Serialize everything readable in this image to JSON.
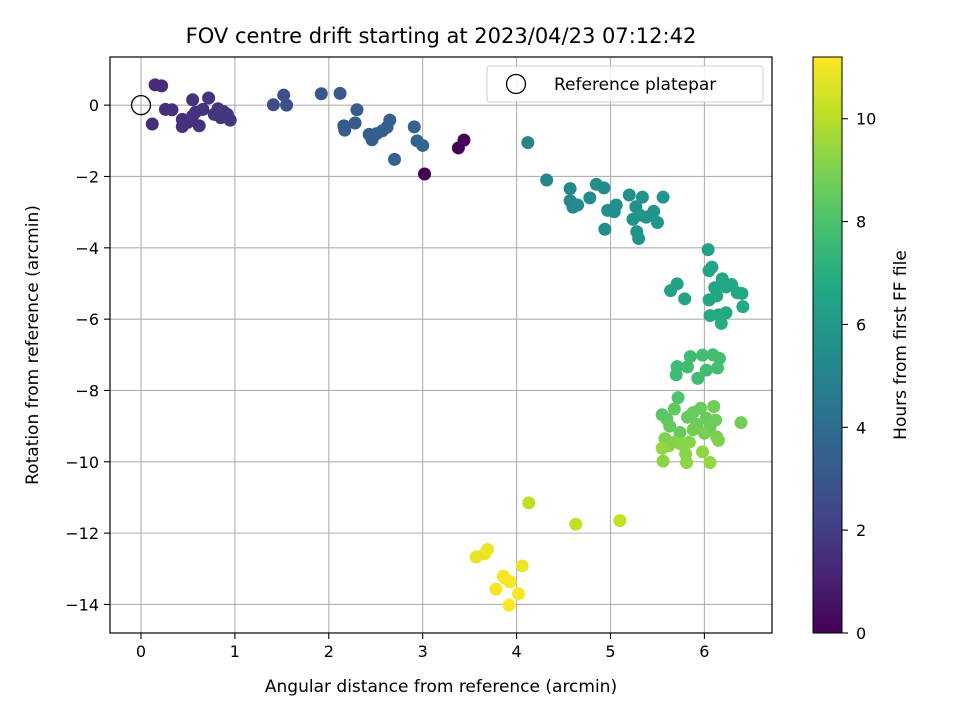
{
  "chart_data": {
    "type": "scatter",
    "title": "FOV centre drift starting at 2023/04/23 07:12:42",
    "xlabel": "Angular distance from reference (arcmin)",
    "ylabel": "Rotation from reference (arcmin)",
    "xlim": [
      -0.33,
      6.72
    ],
    "ylim": [
      -14.8,
      1.35
    ],
    "xticks": [
      0,
      1,
      2,
      3,
      4,
      5,
      6
    ],
    "yticks": [
      0,
      -2,
      -4,
      -6,
      -8,
      -10,
      -12,
      -14
    ],
    "grid": true,
    "legend": {
      "position": "top-right",
      "entries": [
        "Reference platepar"
      ]
    },
    "reference_point": {
      "x": 0,
      "y": 0
    },
    "colorbar": {
      "label": "Hours from first FF file",
      "colormap": "viridis",
      "range": [
        0,
        11.2
      ],
      "ticks": [
        0,
        2,
        4,
        6,
        8,
        10
      ]
    },
    "points": [
      {
        "x": 3.02,
        "y": -1.93,
        "h": 0.0
      },
      {
        "x": 3.38,
        "y": -1.2,
        "h": 0.1
      },
      {
        "x": 3.44,
        "y": -0.98,
        "h": 0.1
      },
      {
        "x": 0.12,
        "y": -0.53,
        "h": 1.4
      },
      {
        "x": 0.15,
        "y": 0.57,
        "h": 1.4
      },
      {
        "x": 0.22,
        "y": 0.54,
        "h": 1.4
      },
      {
        "x": 0.26,
        "y": -0.12,
        "h": 1.5
      },
      {
        "x": 0.33,
        "y": -0.13,
        "h": 1.5
      },
      {
        "x": 0.44,
        "y": -0.4,
        "h": 1.5
      },
      {
        "x": 0.44,
        "y": -0.6,
        "h": 1.5
      },
      {
        "x": 0.5,
        "y": -0.48,
        "h": 1.5
      },
      {
        "x": 0.55,
        "y": -0.3,
        "h": 1.6
      },
      {
        "x": 0.55,
        "y": 0.15,
        "h": 1.6
      },
      {
        "x": 0.58,
        "y": -0.2,
        "h": 1.6
      },
      {
        "x": 0.62,
        "y": -0.58,
        "h": 1.6
      },
      {
        "x": 0.66,
        "y": -0.12,
        "h": 1.6
      },
      {
        "x": 0.72,
        "y": 0.2,
        "h": 1.7
      },
      {
        "x": 0.78,
        "y": -0.26,
        "h": 1.7
      },
      {
        "x": 0.82,
        "y": -0.1,
        "h": 1.7
      },
      {
        "x": 0.85,
        "y": -0.35,
        "h": 1.7
      },
      {
        "x": 0.88,
        "y": -0.18,
        "h": 1.8
      },
      {
        "x": 0.92,
        "y": -0.26,
        "h": 1.8
      },
      {
        "x": 0.95,
        "y": -0.42,
        "h": 1.8
      },
      {
        "x": 1.41,
        "y": 0.01,
        "h": 2.6
      },
      {
        "x": 1.52,
        "y": 0.28,
        "h": 2.7
      },
      {
        "x": 1.55,
        "y": 0.0,
        "h": 2.7
      },
      {
        "x": 1.92,
        "y": 0.32,
        "h": 3.0
      },
      {
        "x": 2.12,
        "y": 0.33,
        "h": 3.1
      },
      {
        "x": 2.16,
        "y": -0.58,
        "h": 3.1
      },
      {
        "x": 2.17,
        "y": -0.7,
        "h": 3.2
      },
      {
        "x": 2.28,
        "y": -0.5,
        "h": 3.2
      },
      {
        "x": 2.3,
        "y": -0.13,
        "h": 3.2
      },
      {
        "x": 2.43,
        "y": -0.82,
        "h": 3.3
      },
      {
        "x": 2.46,
        "y": -0.97,
        "h": 3.3
      },
      {
        "x": 2.51,
        "y": -0.8,
        "h": 3.3
      },
      {
        "x": 2.57,
        "y": -0.72,
        "h": 3.4
      },
      {
        "x": 2.62,
        "y": -0.62,
        "h": 3.4
      },
      {
        "x": 2.65,
        "y": -0.42,
        "h": 3.4
      },
      {
        "x": 2.7,
        "y": -1.52,
        "h": 3.5
      },
      {
        "x": 2.91,
        "y": -0.61,
        "h": 3.6
      },
      {
        "x": 2.94,
        "y": -1.0,
        "h": 3.6
      },
      {
        "x": 3.0,
        "y": -1.13,
        "h": 3.7
      },
      {
        "x": 4.12,
        "y": -1.05,
        "h": 5.0
      },
      {
        "x": 4.32,
        "y": -2.1,
        "h": 5.1
      },
      {
        "x": 4.57,
        "y": -2.34,
        "h": 5.2
      },
      {
        "x": 4.57,
        "y": -2.68,
        "h": 5.2
      },
      {
        "x": 4.6,
        "y": -2.86,
        "h": 5.2
      },
      {
        "x": 4.65,
        "y": -2.8,
        "h": 5.3
      },
      {
        "x": 4.78,
        "y": -2.6,
        "h": 5.3
      },
      {
        "x": 4.85,
        "y": -2.22,
        "h": 5.4
      },
      {
        "x": 4.93,
        "y": -2.32,
        "h": 5.4
      },
      {
        "x": 4.94,
        "y": -3.48,
        "h": 5.4
      },
      {
        "x": 4.97,
        "y": -2.95,
        "h": 5.5
      },
      {
        "x": 5.04,
        "y": -2.99,
        "h": 5.5
      },
      {
        "x": 5.06,
        "y": -2.8,
        "h": 5.5
      },
      {
        "x": 5.2,
        "y": -2.52,
        "h": 5.6
      },
      {
        "x": 5.24,
        "y": -3.2,
        "h": 5.6
      },
      {
        "x": 5.27,
        "y": -2.85,
        "h": 5.6
      },
      {
        "x": 5.28,
        "y": -3.55,
        "h": 5.7
      },
      {
        "x": 5.31,
        "y": -3.08,
        "h": 5.7
      },
      {
        "x": 5.34,
        "y": -2.58,
        "h": 5.7
      },
      {
        "x": 5.38,
        "y": -3.14,
        "h": 5.7
      },
      {
        "x": 5.46,
        "y": -2.98,
        "h": 5.8
      },
      {
        "x": 5.5,
        "y": -3.29,
        "h": 5.8
      },
      {
        "x": 5.56,
        "y": -2.58,
        "h": 5.8
      },
      {
        "x": 5.3,
        "y": -3.74,
        "h": 5.8
      },
      {
        "x": 6.04,
        "y": -4.05,
        "h": 6.4
      },
      {
        "x": 5.71,
        "y": -5.01,
        "h": 6.5
      },
      {
        "x": 5.64,
        "y": -5.2,
        "h": 6.5
      },
      {
        "x": 5.79,
        "y": -5.43,
        "h": 6.5
      },
      {
        "x": 6.05,
        "y": -4.64,
        "h": 6.5
      },
      {
        "x": 6.08,
        "y": -4.54,
        "h": 6.6
      },
      {
        "x": 6.11,
        "y": -5.12,
        "h": 6.6
      },
      {
        "x": 6.05,
        "y": -5.46,
        "h": 6.6
      },
      {
        "x": 6.13,
        "y": -5.35,
        "h": 6.6
      },
      {
        "x": 6.19,
        "y": -4.87,
        "h": 6.6
      },
      {
        "x": 6.23,
        "y": -5.1,
        "h": 6.7
      },
      {
        "x": 6.29,
        "y": -5.03,
        "h": 6.7
      },
      {
        "x": 6.35,
        "y": -5.26,
        "h": 6.7
      },
      {
        "x": 6.4,
        "y": -5.28,
        "h": 6.7
      },
      {
        "x": 6.41,
        "y": -5.65,
        "h": 6.8
      },
      {
        "x": 6.06,
        "y": -5.9,
        "h": 6.8
      },
      {
        "x": 6.15,
        "y": -5.88,
        "h": 6.8
      },
      {
        "x": 6.23,
        "y": -5.82,
        "h": 6.8
      },
      {
        "x": 6.18,
        "y": -6.12,
        "h": 6.9
      },
      {
        "x": 5.71,
        "y": -7.33,
        "h": 7.6
      },
      {
        "x": 5.7,
        "y": -7.56,
        "h": 7.7
      },
      {
        "x": 5.82,
        "y": -7.34,
        "h": 7.7
      },
      {
        "x": 5.85,
        "y": -7.05,
        "h": 7.7
      },
      {
        "x": 5.93,
        "y": -7.66,
        "h": 7.7
      },
      {
        "x": 5.98,
        "y": -7.01,
        "h": 7.8
      },
      {
        "x": 6.02,
        "y": -7.43,
        "h": 7.8
      },
      {
        "x": 6.09,
        "y": -7.0,
        "h": 7.8
      },
      {
        "x": 6.14,
        "y": -7.37,
        "h": 7.8
      },
      {
        "x": 6.16,
        "y": -7.1,
        "h": 7.8
      },
      {
        "x": 5.72,
        "y": -8.2,
        "h": 8.0
      },
      {
        "x": 5.55,
        "y": -8.68,
        "h": 8.3
      },
      {
        "x": 5.6,
        "y": -8.8,
        "h": 8.4
      },
      {
        "x": 5.68,
        "y": -8.52,
        "h": 8.4
      },
      {
        "x": 5.63,
        "y": -9.0,
        "h": 8.5
      },
      {
        "x": 5.74,
        "y": -9.18,
        "h": 8.5
      },
      {
        "x": 5.82,
        "y": -8.75,
        "h": 8.5
      },
      {
        "x": 5.88,
        "y": -8.62,
        "h": 8.6
      },
      {
        "x": 5.92,
        "y": -8.95,
        "h": 8.6
      },
      {
        "x": 5.96,
        "y": -8.5,
        "h": 8.6
      },
      {
        "x": 6.02,
        "y": -8.78,
        "h": 8.6
      },
      {
        "x": 6.06,
        "y": -9.02,
        "h": 8.7
      },
      {
        "x": 6.1,
        "y": -8.45,
        "h": 8.7
      },
      {
        "x": 6.12,
        "y": -8.83,
        "h": 8.7
      },
      {
        "x": 6.39,
        "y": -8.9,
        "h": 8.8
      },
      {
        "x": 5.88,
        "y": -9.1,
        "h": 8.8
      },
      {
        "x": 6.0,
        "y": -9.2,
        "h": 8.9
      },
      {
        "x": 6.13,
        "y": -9.3,
        "h": 8.9
      },
      {
        "x": 6.15,
        "y": -9.4,
        "h": 9.0
      },
      {
        "x": 5.58,
        "y": -9.35,
        "h": 9.0
      },
      {
        "x": 5.62,
        "y": -9.55,
        "h": 9.1
      },
      {
        "x": 5.68,
        "y": -9.45,
        "h": 9.1
      },
      {
        "x": 5.75,
        "y": -9.5,
        "h": 9.2
      },
      {
        "x": 5.8,
        "y": -9.78,
        "h": 9.2
      },
      {
        "x": 5.84,
        "y": -9.45,
        "h": 9.2
      },
      {
        "x": 5.56,
        "y": -9.98,
        "h": 9.3
      },
      {
        "x": 5.81,
        "y": -10.02,
        "h": 9.3
      },
      {
        "x": 5.98,
        "y": -9.72,
        "h": 9.3
      },
      {
        "x": 6.06,
        "y": -10.02,
        "h": 9.4
      },
      {
        "x": 5.55,
        "y": -9.62,
        "h": 9.4
      },
      {
        "x": 4.13,
        "y": -11.15,
        "h": 10.1
      },
      {
        "x": 4.63,
        "y": -11.75,
        "h": 10.2
      },
      {
        "x": 5.1,
        "y": -11.65,
        "h": 10.2
      },
      {
        "x": 3.57,
        "y": -12.67,
        "h": 10.8
      },
      {
        "x": 3.66,
        "y": -12.58,
        "h": 10.8
      },
      {
        "x": 3.69,
        "y": -12.46,
        "h": 10.9
      },
      {
        "x": 4.06,
        "y": -12.92,
        "h": 10.9
      },
      {
        "x": 3.78,
        "y": -13.57,
        "h": 11.0
      },
      {
        "x": 3.86,
        "y": -13.21,
        "h": 11.0
      },
      {
        "x": 3.88,
        "y": -13.27,
        "h": 11.0
      },
      {
        "x": 3.93,
        "y": -13.37,
        "h": 11.1
      },
      {
        "x": 4.02,
        "y": -13.7,
        "h": 11.1
      },
      {
        "x": 3.92,
        "y": -14.02,
        "h": 11.2
      }
    ]
  }
}
